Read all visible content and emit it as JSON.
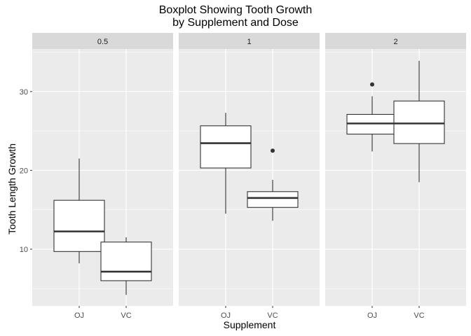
{
  "chart_data": {
    "type": "box",
    "title": "Boxplot Showing Tooth Growth",
    "subtitle": "by Supplement and Dose",
    "xlabel": "Supplement",
    "ylabel": "Tooth Length Growth",
    "ylim": [
      2.8,
      35.4
    ],
    "yticks": [
      10,
      20,
      30
    ],
    "categories": [
      "OJ",
      "VC"
    ],
    "grid": true,
    "facets": [
      {
        "label": "0.5",
        "boxes": [
          {
            "category": "OJ",
            "whisker_low": 8.2,
            "q1": 9.7,
            "median": 12.25,
            "q3": 16.2,
            "whisker_high": 21.5,
            "outliers": []
          },
          {
            "category": "VC",
            "whisker_low": 4.2,
            "q1": 6.0,
            "median": 7.15,
            "q3": 10.9,
            "whisker_high": 11.5,
            "outliers": []
          }
        ]
      },
      {
        "label": "1",
        "boxes": [
          {
            "category": "OJ",
            "whisker_low": 14.5,
            "q1": 20.3,
            "median": 23.45,
            "q3": 25.65,
            "whisker_high": 27.3,
            "outliers": []
          },
          {
            "category": "VC",
            "whisker_low": 13.6,
            "q1": 15.3,
            "median": 16.5,
            "q3": 17.3,
            "whisker_high": 18.8,
            "outliers": [
              22.5
            ]
          }
        ]
      },
      {
        "label": "2",
        "boxes": [
          {
            "category": "OJ",
            "whisker_low": 22.4,
            "q1": 24.6,
            "median": 25.95,
            "q3": 27.1,
            "whisker_high": 29.4,
            "outliers": [
              30.9
            ]
          },
          {
            "category": "VC",
            "whisker_low": 18.5,
            "q1": 23.4,
            "median": 25.95,
            "q3": 28.8,
            "whisker_high": 33.9,
            "outliers": []
          }
        ]
      }
    ],
    "colors": {
      "panel_bg": "#ebebeb",
      "strip_bg": "#d9d9d9",
      "grid": "#ffffff",
      "box_fill": "#ffffff",
      "box_line": "#333333",
      "tick_text": "#4d4d4d",
      "strip_text": "#1a1a1a"
    }
  }
}
